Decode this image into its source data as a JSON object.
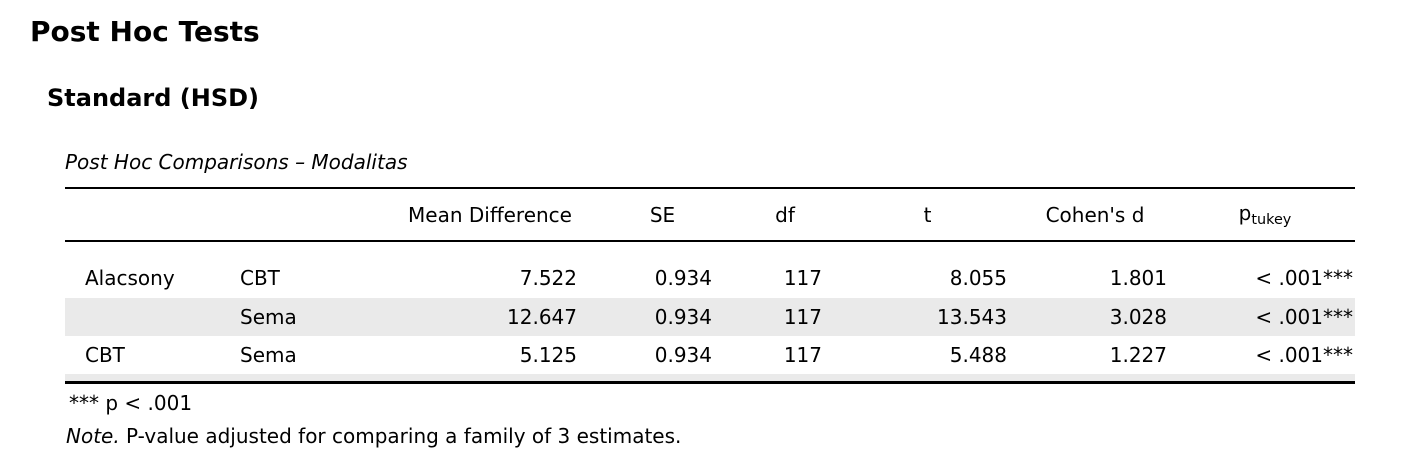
{
  "page": {
    "title": "Post Hoc Tests",
    "subtitle": "Standard (HSD)"
  },
  "table": {
    "caption": "Post Hoc Comparisons – Modalitas",
    "header": {
      "group_a": "",
      "group_b": "",
      "mean_difference": "Mean Difference",
      "se": "SE",
      "df": "df",
      "t": "t",
      "cohens_d": "Cohen's d",
      "p_base": "p",
      "p_sub": "tukey"
    },
    "rows": [
      {
        "group_a": "Alacsony",
        "group_b": "CBT",
        "mean_difference": "7.522",
        "se": "0.934",
        "df": "117",
        "t": "8.055",
        "cohens_d": "1.801",
        "p_tukey": "< .001***"
      },
      {
        "group_a": "",
        "group_b": "Sema",
        "mean_difference": "12.647",
        "se": "0.934",
        "df": "117",
        "t": "13.543",
        "cohens_d": "3.028",
        "p_tukey": "< .001***"
      },
      {
        "group_a": "CBT",
        "group_b": "Sema",
        "mean_difference": "5.125",
        "se": "0.934",
        "df": "117",
        "t": "5.488",
        "cohens_d": "1.227",
        "p_tukey": "< .001***"
      }
    ],
    "footnotes": {
      "significance": "*** p < .001",
      "note_label": "Note.",
      "note_text": " P-value adjusted for comparing a family of 3 estimates."
    },
    "colors": {
      "stripe": "#eaeaea",
      "rule": "#000000",
      "text": "#000000",
      "background": "#ffffff"
    }
  }
}
